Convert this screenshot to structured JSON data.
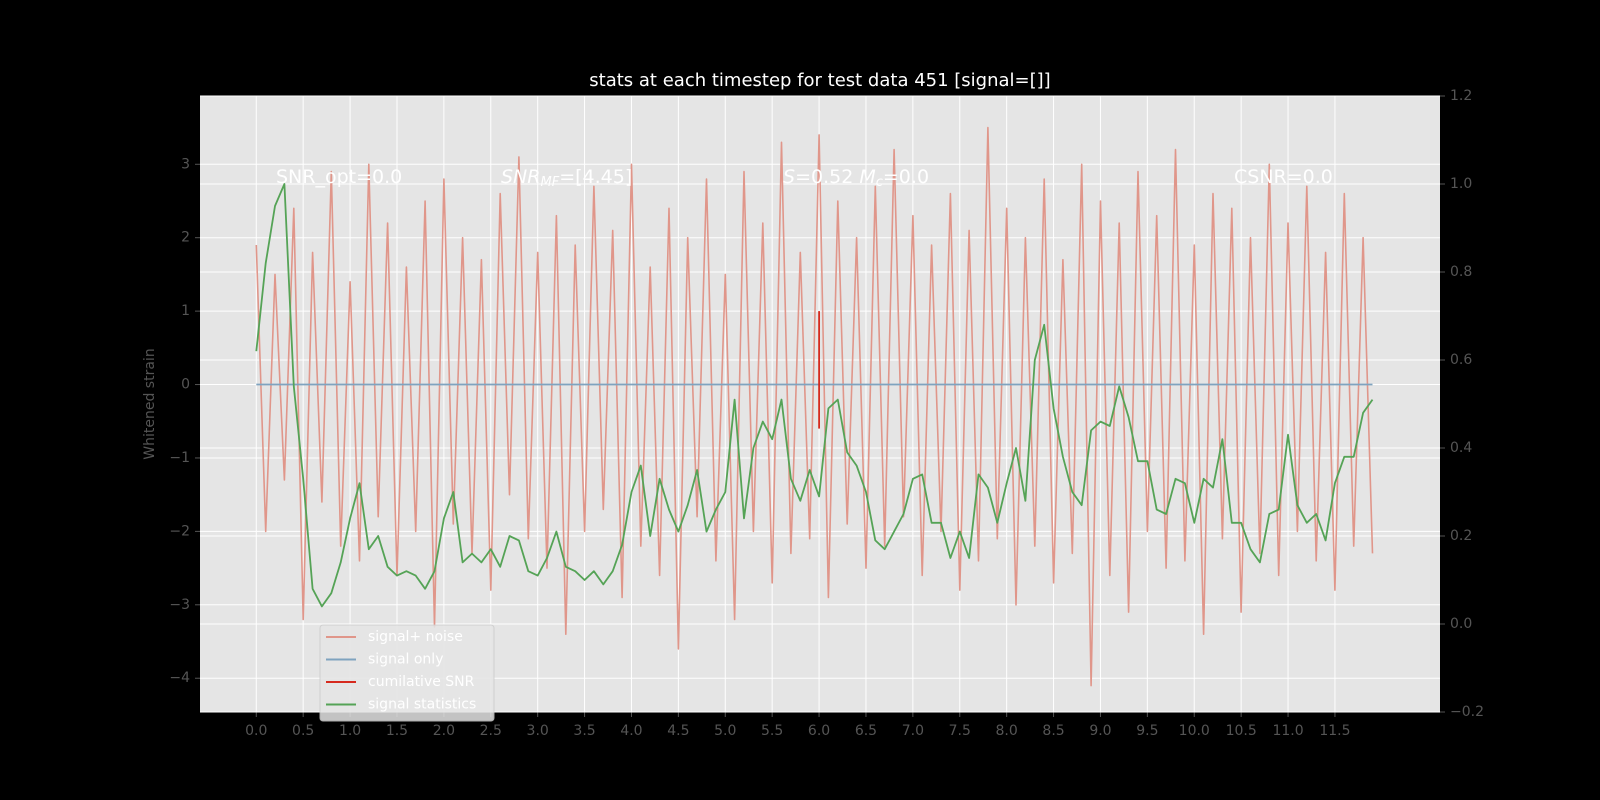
{
  "chart_data": {
    "type": "line",
    "title": "stats at each timestep for test data 451 [signal=[]]",
    "ylabel": "Whitened strain",
    "grid": true,
    "legend": "lower left",
    "xlim": [
      -0.6,
      12.62
    ],
    "ylim": [
      -4.46,
      3.93
    ],
    "y2lim": [
      -0.2,
      1.2
    ],
    "xticks": [
      {
        "value": 0,
        "label": "0.0"
      },
      0.5,
      {
        "value": 1,
        "label": "1.0"
      },
      1.5,
      {
        "value": 2,
        "label": "2.0"
      },
      2.5,
      {
        "value": 3,
        "label": "3.0"
      },
      3.5,
      {
        "value": 4,
        "label": "4.0"
      },
      4.5,
      {
        "value": 5,
        "label": "5.0"
      },
      5.5,
      {
        "value": 6,
        "label": "6.0"
      },
      6.5,
      {
        "value": 7,
        "label": "7.0"
      },
      7.5,
      {
        "value": 8,
        "label": "8.0"
      },
      8.5,
      {
        "value": 9,
        "label": "9.0"
      },
      9.5,
      {
        "value": 10,
        "label": "10.0"
      },
      10.5,
      {
        "value": 11,
        "label": "11.0"
      },
      11.5
    ],
    "yticks": [
      {
        "value": -4,
        "label": "−4"
      },
      {
        "value": -3,
        "label": "−3"
      },
      {
        "value": -2,
        "label": "−2"
      },
      {
        "value": -1,
        "label": "−1"
      },
      0,
      1,
      2,
      3
    ],
    "y2ticks": [
      {
        "value": -0.2,
        "label": "−0.2"
      },
      {
        "value": 0,
        "label": "0.0"
      },
      0.2,
      0.4,
      0.6,
      0.8,
      {
        "value": 1,
        "label": "1.0"
      },
      1.2
    ],
    "annotations": [
      {
        "runs": [
          {
            "text": "SNR_opt=0.0"
          }
        ]
      },
      {
        "runs": [
          {
            "text": "SNR",
            "style": "italic"
          },
          {
            "text": "MF",
            "style": "sub"
          },
          {
            "text": "=[4.45]"
          }
        ]
      },
      {
        "runs": [
          {
            "text": "S",
            "style": "italic"
          },
          {
            "text": "=0.52   "
          },
          {
            "text": "M",
            "style": "italic"
          },
          {
            "text": "c",
            "style": "sub"
          },
          {
            "text": "=0.0"
          }
        ]
      },
      {
        "runs": [
          {
            "text": "CSNR=0.0"
          }
        ]
      }
    ],
    "x": [
      0,
      0.1,
      0.2,
      0.3,
      0.4,
      0.5,
      0.6,
      0.7,
      0.8,
      0.9,
      1,
      1.1,
      1.2,
      1.3,
      1.4,
      1.5,
      1.6,
      1.7,
      1.8,
      1.9,
      2,
      2.1,
      2.2,
      2.3,
      2.4,
      2.5,
      2.6,
      2.7,
      2.8,
      2.9,
      3,
      3.1,
      3.2,
      3.3,
      3.4,
      3.5,
      3.6,
      3.7,
      3.8,
      3.9,
      4,
      4.1,
      4.2,
      4.3,
      4.4,
      4.5,
      4.6,
      4.7,
      4.8,
      4.9,
      5,
      5.1,
      5.2,
      5.3,
      5.4,
      5.5,
      5.6,
      5.7,
      5.8,
      5.9,
      6,
      6.1,
      6.2,
      6.3,
      6.4,
      6.5,
      6.6,
      6.7,
      6.8,
      6.9,
      7,
      7.1,
      7.2,
      7.3,
      7.4,
      7.5,
      7.6,
      7.7,
      7.8,
      7.9,
      8,
      8.1,
      8.2,
      8.3,
      8.4,
      8.5,
      8.6,
      8.7,
      8.8,
      8.9,
      9,
      9.1,
      9.2,
      9.3,
      9.4,
      9.5,
      9.6,
      9.7,
      9.8,
      9.9,
      10,
      10.1,
      10.2,
      10.3,
      10.4,
      10.5,
      10.6,
      10.7,
      10.8,
      10.9,
      11,
      11.1,
      11.2,
      11.3,
      11.4,
      11.5,
      11.6,
      11.7,
      11.8,
      11.9
    ],
    "series": [
      {
        "name": "signal+ noise",
        "color": "#e0968a",
        "values": [
          1.9,
          -2.0,
          1.5,
          -1.3,
          2.4,
          -3.2,
          1.8,
          -1.6,
          2.9,
          -2.2,
          1.4,
          -2.4,
          3.0,
          -1.8,
          2.2,
          -2.6,
          1.6,
          -2.0,
          2.5,
          -3.3,
          2.8,
          -1.9,
          2.0,
          -2.3,
          1.7,
          -2.8,
          2.6,
          -1.5,
          3.1,
          -2.1,
          1.8,
          -2.5,
          2.3,
          -3.4,
          1.9,
          -2.0,
          2.7,
          -1.7,
          2.1,
          -2.9,
          3.0,
          -2.2,
          1.6,
          -2.6,
          2.4,
          -3.6,
          2.0,
          -1.8,
          2.8,
          -2.4,
          1.5,
          -3.2,
          2.9,
          -2.0,
          2.2,
          -2.7,
          3.3,
          -2.3,
          1.8,
          -2.1,
          3.4,
          -2.9,
          2.5,
          -1.9,
          2.0,
          -2.5,
          2.7,
          -2.2,
          3.2,
          -1.8,
          2.3,
          -2.6,
          1.9,
          -2.0,
          2.6,
          -2.8,
          2.1,
          -2.4,
          3.5,
          -2.1,
          2.4,
          -3.0,
          2.0,
          -2.2,
          2.8,
          -2.7,
          1.7,
          -2.3,
          3.0,
          -4.1,
          2.5,
          -2.6,
          2.2,
          -3.1,
          2.9,
          -2.0,
          2.3,
          -2.5,
          3.2,
          -2.4,
          1.9,
          -3.4,
          2.6,
          -2.1,
          2.4,
          -3.1,
          2.0,
          -2.3,
          3.0,
          -2.6,
          2.2,
          -2.0,
          2.7,
          -2.4,
          1.8,
          -2.8,
          2.6,
          -2.2,
          2.0,
          -2.3
        ]
      },
      {
        "name": "signal only",
        "color": "#7fa3bf",
        "values": [
          0,
          0,
          0,
          0,
          0,
          0,
          0,
          0,
          0,
          0,
          0,
          0,
          0,
          0,
          0,
          0,
          0,
          0,
          0,
          0,
          0,
          0,
          0,
          0,
          0,
          0,
          0,
          0,
          0,
          0,
          0,
          0,
          0,
          0,
          0,
          0,
          0,
          0,
          0,
          0,
          0,
          0,
          0,
          0,
          0,
          0,
          0,
          0,
          0,
          0,
          0,
          0,
          0,
          0,
          0,
          0,
          0,
          0,
          0,
          0,
          0,
          0,
          0,
          0,
          0,
          0,
          0,
          0,
          0,
          0,
          0,
          0,
          0,
          0,
          0,
          0,
          0,
          0,
          0,
          0,
          0,
          0,
          0,
          0,
          0,
          0,
          0,
          0,
          0,
          0,
          0,
          0,
          0,
          0,
          0,
          0,
          0,
          0,
          0,
          0,
          0,
          0,
          0,
          0,
          0,
          0,
          0,
          0,
          0,
          0,
          0,
          0,
          0,
          0,
          0,
          0,
          0,
          0,
          0,
          0
        ]
      },
      {
        "name": "cumilative SNR",
        "color": "#d62a1e",
        "x": [
          6.0,
          6.0
        ],
        "values": [
          1.0,
          -0.6
        ]
      },
      {
        "name": "signal statistics",
        "color": "#55a356",
        "axis": "y2",
        "values": [
          0.62,
          0.82,
          0.95,
          1.0,
          0.54,
          0.33,
          0.08,
          0.04,
          0.07,
          0.14,
          0.24,
          0.32,
          0.17,
          0.2,
          0.13,
          0.11,
          0.12,
          0.11,
          0.08,
          0.12,
          0.24,
          0.3,
          0.14,
          0.16,
          0.14,
          0.17,
          0.13,
          0.2,
          0.19,
          0.12,
          0.11,
          0.15,
          0.21,
          0.13,
          0.12,
          0.1,
          0.12,
          0.09,
          0.12,
          0.18,
          0.3,
          0.36,
          0.2,
          0.33,
          0.26,
          0.21,
          0.27,
          0.35,
          0.21,
          0.26,
          0.3,
          0.51,
          0.24,
          0.4,
          0.46,
          0.42,
          0.51,
          0.33,
          0.28,
          0.35,
          0.29,
          0.49,
          0.51,
          0.39,
          0.36,
          0.3,
          0.19,
          0.17,
          0.21,
          0.25,
          0.33,
          0.34,
          0.23,
          0.23,
          0.15,
          0.21,
          0.15,
          0.34,
          0.31,
          0.23,
          0.32,
          0.4,
          0.28,
          0.6,
          0.68,
          0.49,
          0.38,
          0.3,
          0.27,
          0.44,
          0.46,
          0.45,
          0.54,
          0.47,
          0.37,
          0.37,
          0.26,
          0.25,
          0.33,
          0.32,
          0.23,
          0.33,
          0.31,
          0.42,
          0.23,
          0.23,
          0.17,
          0.14,
          0.25,
          0.26,
          0.43,
          0.27,
          0.23,
          0.25,
          0.19,
          0.32,
          0.38,
          0.38,
          0.48,
          0.51
        ]
      }
    ]
  }
}
